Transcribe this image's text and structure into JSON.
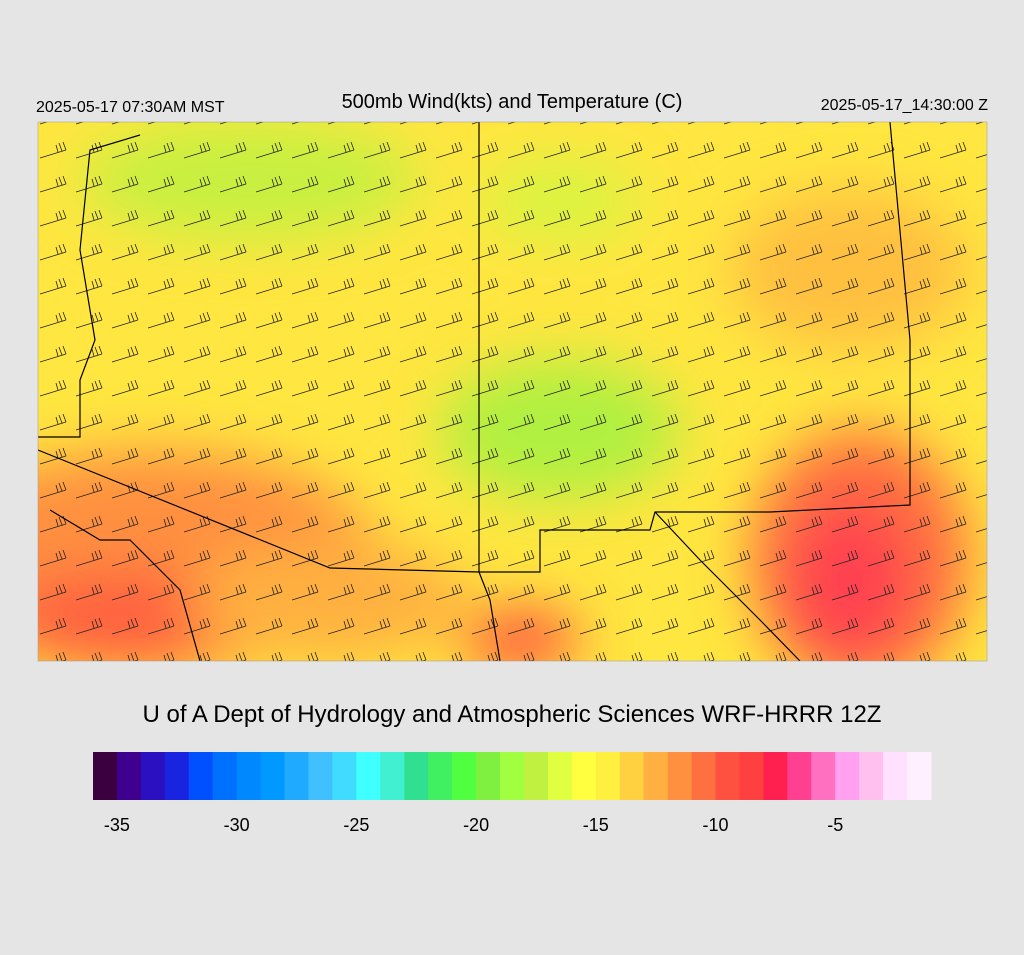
{
  "header": {
    "left": "2025-05-17 07:30AM MST",
    "title": "500mb Wind(kts) and Temperature (C)",
    "right": "2025-05-17_14:30:00 Z"
  },
  "footer": "U of A Dept of Hydrology and Atmospheric Sciences WRF-HRRR 12Z",
  "colorbar": {
    "range": [
      -36,
      -1
    ],
    "colors": [
      "#3a0040",
      "#3f0090",
      "#2a10c0",
      "#1a24e0",
      "#0050ff",
      "#0070ff",
      "#0088ff",
      "#0099ff",
      "#20aaff",
      "#40c0ff",
      "#40dcff",
      "#40ffff",
      "#40f0d0",
      "#30e090",
      "#40f060",
      "#50ff40",
      "#80f040",
      "#a0ff40",
      "#c0f040",
      "#e0ff40",
      "#ffff40",
      "#fff040",
      "#ffd040",
      "#ffb040",
      "#ff9040",
      "#ff7040",
      "#ff5040",
      "#ff4040",
      "#ff2050",
      "#ff4090",
      "#ff70c0",
      "#ffa0f0",
      "#ffc0f0",
      "#ffe0ff",
      "#fff0ff"
    ],
    "ticks": [
      -35,
      -30,
      -25,
      -20,
      -15,
      -10,
      -5
    ]
  }
}
